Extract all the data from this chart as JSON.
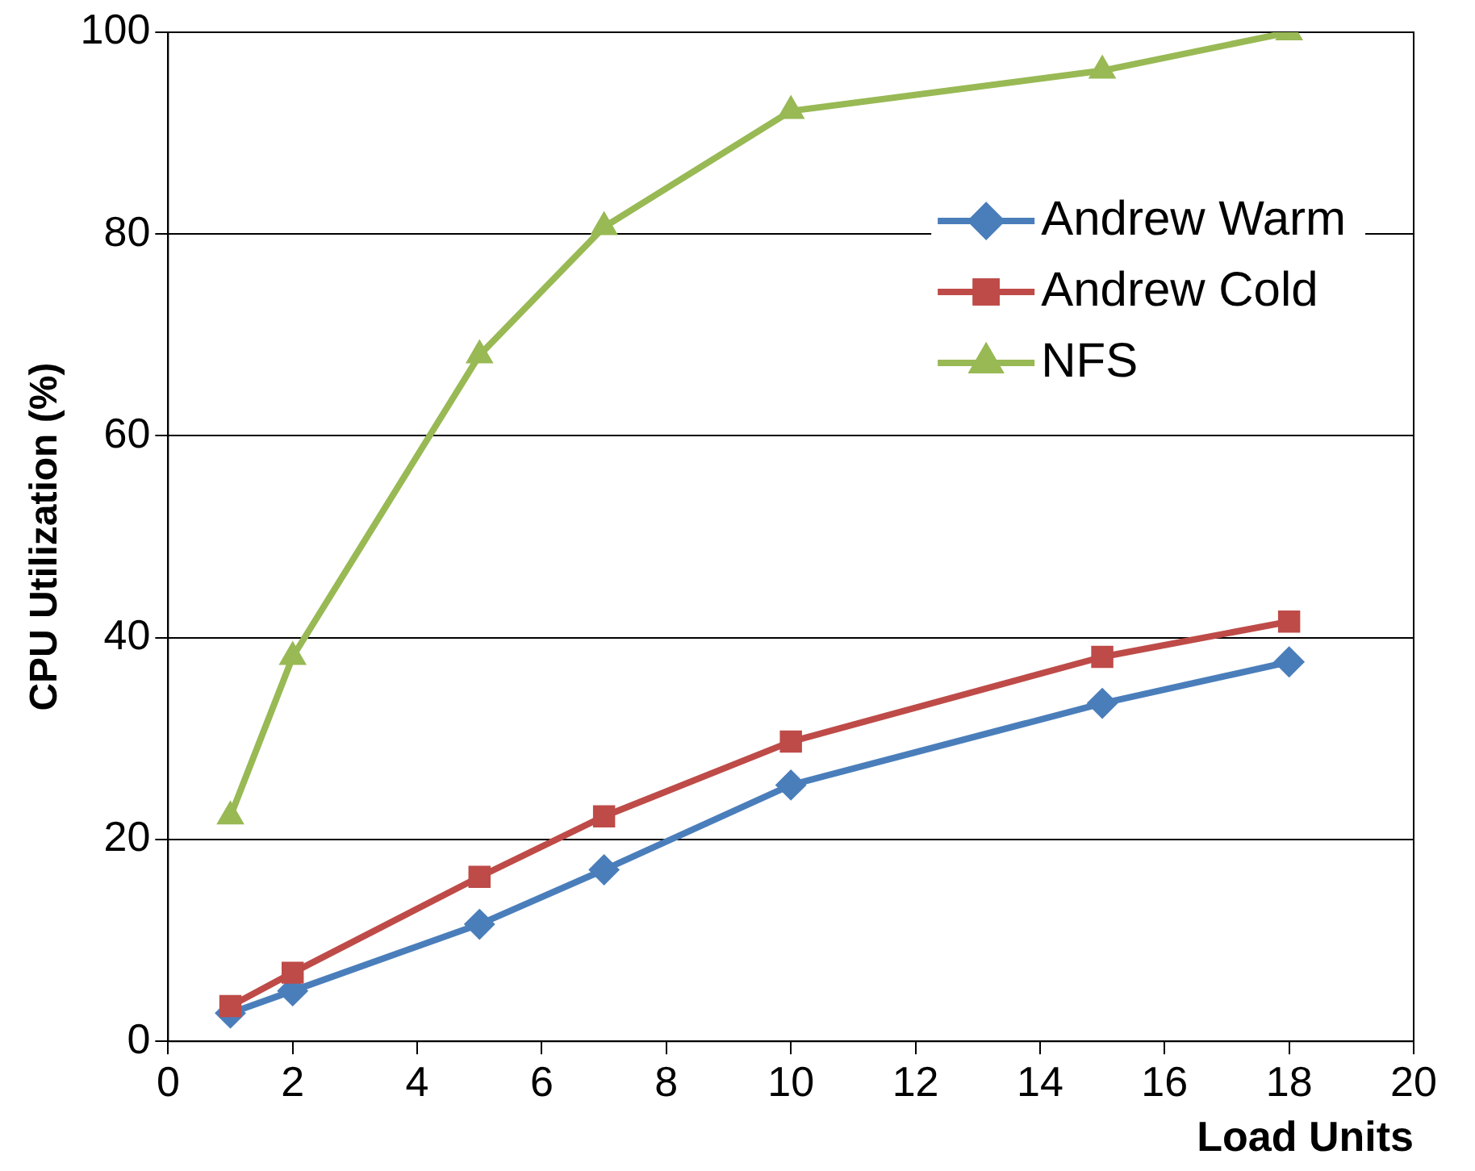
{
  "chart_data": {
    "type": "line",
    "xlabel": "Load Units",
    "ylabel": "CPU Utilization (%)",
    "x": [
      1,
      2,
      5,
      7,
      10,
      15,
      18
    ],
    "series": [
      {
        "name": "Andrew Warm",
        "color": "#4a7ebb",
        "marker": "diamond",
        "values": [
          2.8,
          5,
          11.6,
          17,
          25.4,
          33.5,
          37.6
        ]
      },
      {
        "name": "Andrew Cold",
        "color": "#be4b48",
        "marker": "square",
        "values": [
          3.5,
          6.8,
          16.3,
          22.3,
          29.7,
          38.1,
          41.6
        ]
      },
      {
        "name": "NFS",
        "color": "#98b954",
        "marker": "triangle",
        "values": [
          22.3,
          38.1,
          68,
          80.7,
          92.2,
          96.2,
          100
        ]
      }
    ],
    "xlim": [
      0,
      20
    ],
    "xticks": [
      0,
      2,
      4,
      6,
      8,
      10,
      12,
      14,
      16,
      18,
      20
    ],
    "ylim": [
      0,
      100
    ],
    "yticks": [
      0,
      20,
      40,
      60,
      80,
      100
    ],
    "grid": "y",
    "legend": "top right",
    "line_style": "solid"
  }
}
